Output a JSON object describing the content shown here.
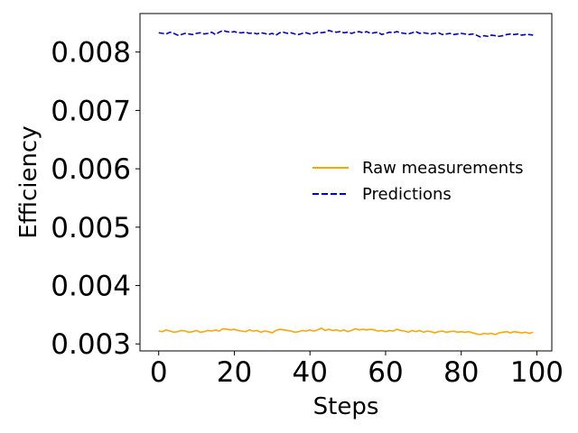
{
  "chart_data": {
    "type": "line",
    "title": "",
    "xlabel": "Steps",
    "ylabel": "Efficiency",
    "xlim": [
      -4.95,
      103.95
    ],
    "ylim": [
      0.00288,
      0.00866
    ],
    "xticks": [
      0,
      20,
      40,
      60,
      80,
      100
    ],
    "xtick_labels": [
      "0",
      "20",
      "40",
      "60",
      "80",
      "100"
    ],
    "yticks": [
      0.003,
      0.004,
      0.005,
      0.006,
      0.007,
      0.008
    ],
    "ytick_labels": [
      "0.003",
      "0.004",
      "0.005",
      "0.006",
      "0.007",
      "0.008"
    ],
    "grid": false,
    "legend_position": "center-right",
    "series": [
      {
        "name": "Raw measurements",
        "color": "#ffa500",
        "style": "solid",
        "x": [
          0,
          1,
          2,
          3,
          4,
          5,
          6,
          7,
          8,
          9,
          10,
          11,
          12,
          13,
          14,
          15,
          16,
          17,
          18,
          19,
          20,
          21,
          22,
          23,
          24,
          25,
          26,
          27,
          28,
          29,
          30,
          31,
          32,
          33,
          34,
          35,
          36,
          37,
          38,
          39,
          40,
          41,
          42,
          43,
          44,
          45,
          46,
          47,
          48,
          49,
          50,
          51,
          52,
          53,
          54,
          55,
          56,
          57,
          58,
          59,
          60,
          61,
          62,
          63,
          64,
          65,
          66,
          67,
          68,
          69,
          70,
          71,
          72,
          73,
          74,
          75,
          76,
          77,
          78,
          79,
          80,
          81,
          82,
          83,
          84,
          85,
          86,
          87,
          88,
          89,
          90,
          91,
          92,
          93,
          94,
          95,
          96,
          97,
          98,
          99
        ],
        "y": [
          0.00322,
          0.00321,
          0.00324,
          0.00322,
          0.0032,
          0.00321,
          0.00323,
          0.00322,
          0.0032,
          0.00321,
          0.00323,
          0.0032,
          0.00321,
          0.00323,
          0.00322,
          0.00324,
          0.00322,
          0.00326,
          0.00325,
          0.00324,
          0.00325,
          0.00323,
          0.00322,
          0.00321,
          0.00324,
          0.00322,
          0.00323,
          0.0032,
          0.00322,
          0.00321,
          0.00319,
          0.00323,
          0.00325,
          0.00324,
          0.00323,
          0.00322,
          0.0032,
          0.00321,
          0.00323,
          0.00322,
          0.00324,
          0.00322,
          0.00324,
          0.00327,
          0.00323,
          0.00325,
          0.00323,
          0.00324,
          0.00322,
          0.00324,
          0.00321,
          0.00323,
          0.00326,
          0.00324,
          0.00325,
          0.00324,
          0.00325,
          0.00324,
          0.00322,
          0.00323,
          0.00321,
          0.00323,
          0.00322,
          0.00325,
          0.00323,
          0.00322,
          0.0032,
          0.00323,
          0.00321,
          0.00323,
          0.0032,
          0.00322,
          0.00321,
          0.00319,
          0.00321,
          0.00322,
          0.0032,
          0.00321,
          0.00322,
          0.0032,
          0.00321,
          0.0032,
          0.00321,
          0.00319,
          0.00317,
          0.00316,
          0.00318,
          0.00317,
          0.00318,
          0.00316,
          0.00319,
          0.0032,
          0.00321,
          0.00319,
          0.00321,
          0.0032,
          0.00319,
          0.0032,
          0.00318,
          0.0032
        ]
      },
      {
        "name": "Predictions",
        "color": "#0000cc",
        "style": "dashed",
        "x": [
          0,
          1,
          2,
          3,
          4,
          5,
          6,
          7,
          8,
          9,
          10,
          11,
          12,
          13,
          14,
          15,
          16,
          17,
          18,
          19,
          20,
          21,
          22,
          23,
          24,
          25,
          26,
          27,
          28,
          29,
          30,
          31,
          32,
          33,
          34,
          35,
          36,
          37,
          38,
          39,
          40,
          41,
          42,
          43,
          44,
          45,
          46,
          47,
          48,
          49,
          50,
          51,
          52,
          53,
          54,
          55,
          56,
          57,
          58,
          59,
          60,
          61,
          62,
          63,
          64,
          65,
          66,
          67,
          68,
          69,
          70,
          71,
          72,
          73,
          74,
          75,
          76,
          77,
          78,
          79,
          80,
          81,
          82,
          83,
          84,
          85,
          86,
          87,
          88,
          89,
          90,
          91,
          92,
          93,
          94,
          95,
          96,
          97,
          98,
          99
        ],
        "y": [
          0.00833,
          0.00832,
          0.00831,
          0.00834,
          0.00832,
          0.00829,
          0.0083,
          0.00832,
          0.00831,
          0.0083,
          0.00832,
          0.00833,
          0.00831,
          0.00832,
          0.00834,
          0.0083,
          0.00834,
          0.00837,
          0.00835,
          0.00834,
          0.00835,
          0.00833,
          0.00833,
          0.00834,
          0.00832,
          0.00833,
          0.00831,
          0.00833,
          0.00832,
          0.0083,
          0.00832,
          0.00829,
          0.00833,
          0.00834,
          0.00832,
          0.00833,
          0.00831,
          0.0083,
          0.00832,
          0.00833,
          0.00831,
          0.00832,
          0.00834,
          0.00833,
          0.00834,
          0.00837,
          0.00835,
          0.00834,
          0.00835,
          0.00833,
          0.00834,
          0.00832,
          0.00834,
          0.00835,
          0.00833,
          0.00835,
          0.00832,
          0.00833,
          0.00834,
          0.0083,
          0.00832,
          0.00834,
          0.00833,
          0.00835,
          0.00833,
          0.00832,
          0.00831,
          0.00833,
          0.00835,
          0.00832,
          0.00833,
          0.00832,
          0.00831,
          0.00832,
          0.00833,
          0.0083,
          0.00831,
          0.00832,
          0.0083,
          0.00831,
          0.00832,
          0.00831,
          0.0083,
          0.00831,
          0.00829,
          0.00826,
          0.00828,
          0.00827,
          0.00829,
          0.00828,
          0.00827,
          0.00828,
          0.0083,
          0.00831,
          0.0083,
          0.00831,
          0.00829,
          0.0083,
          0.0083,
          0.00829
        ]
      }
    ]
  }
}
